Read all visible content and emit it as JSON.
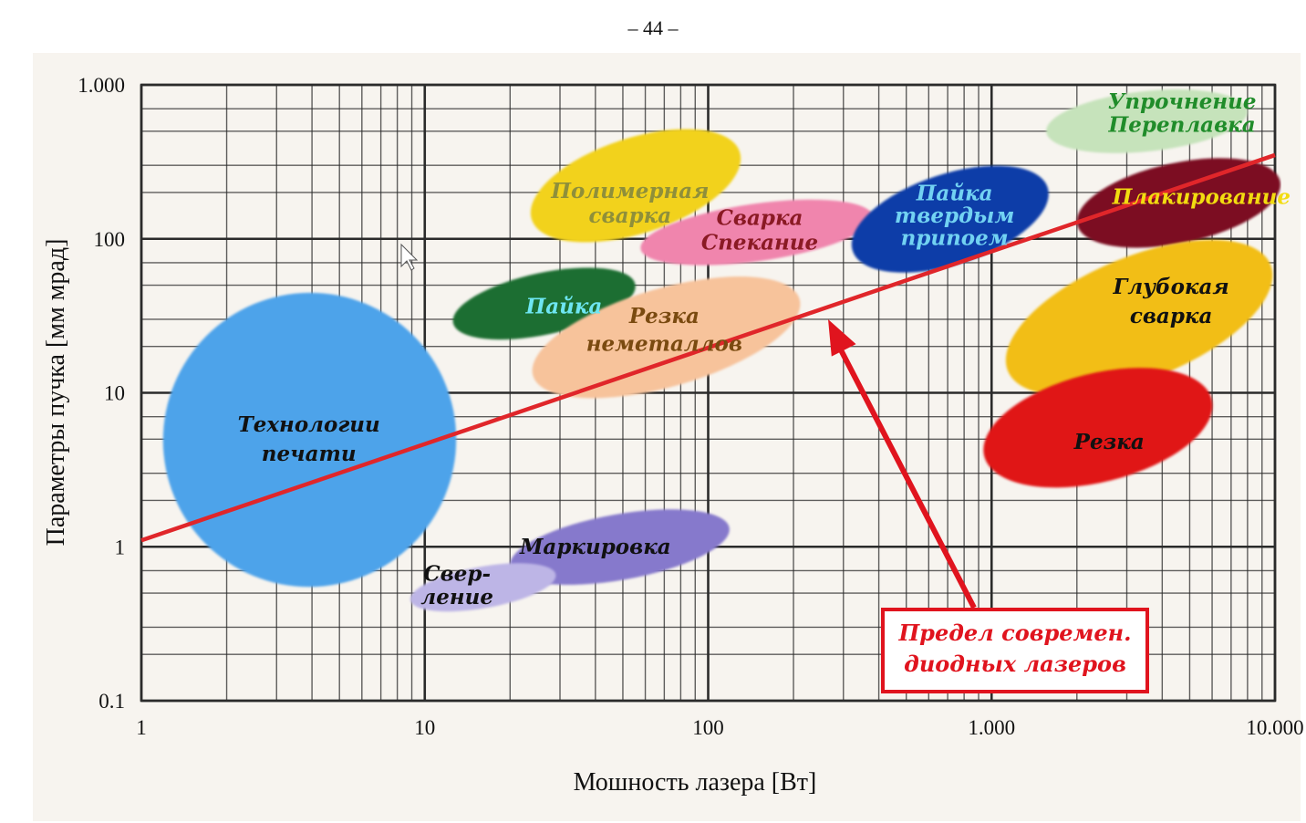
{
  "page_number": "– 44 –",
  "colors": {
    "limit_line": "#e0262a",
    "annotation": "#e0141e",
    "grid": "#2b2b2b",
    "background": "#f7f4ef"
  },
  "chart_data": {
    "type": "scatter",
    "title": "",
    "xlabel": "Мошность лазера [Вт]",
    "ylabel": "Параметры пучка [мм мрад]",
    "xscale": "log",
    "yscale": "log",
    "xlim": [
      1,
      10000
    ],
    "ylim": [
      0.1,
      1000
    ],
    "grid": true,
    "x_ticks": [
      {
        "value": 1,
        "label": "1"
      },
      {
        "value": 10,
        "label": "10"
      },
      {
        "value": 100,
        "label": "100"
      },
      {
        "value": 1000,
        "label": "1.000"
      },
      {
        "value": 10000,
        "label": "10.000"
      }
    ],
    "y_ticks": [
      {
        "value": 0.1,
        "label": "0.1"
      },
      {
        "value": 1,
        "label": "1"
      },
      {
        "value": 10,
        "label": "10"
      },
      {
        "value": 100,
        "label": "100"
      },
      {
        "value": 1000,
        "label": "1.000"
      }
    ],
    "regions": [
      {
        "name": "technologies-printing",
        "lines": [
          "Технологии",
          "печати"
        ],
        "x": 3.9,
        "y": 5.1,
        "x_range": [
          1.1,
          14
        ],
        "y_range": [
          0.7,
          35
        ],
        "color": "#4da3ea",
        "text_color": "#111111"
      },
      {
        "name": "polymer-welding",
        "lines": [
          "Полимерная",
          "сварка"
        ],
        "x": 53,
        "y": 170,
        "x_range": [
          22,
          140
        ],
        "y_range": [
          70,
          700
        ],
        "color": "#f2d21a",
        "text_color": "#8f8f3a"
      },
      {
        "name": "soldering",
        "lines": [
          "Пайка"
        ],
        "x": 31,
        "y": 37,
        "x_range": [
          12,
          58
        ],
        "y_range": [
          18,
          80
        ],
        "color": "#1c6e32",
        "text_color": "#6ee6f2"
      },
      {
        "name": "welding-sintering",
        "lines": [
          "Сварка",
          "Спекание"
        ],
        "x": 152,
        "y": 114,
        "x_range": [
          55,
          400
        ],
        "y_range": [
          55,
          220
        ],
        "color": "#f085ad",
        "text_color": "#8a1a24"
      },
      {
        "name": "cutting-nonmetals",
        "lines": [
          "Резка",
          "неметаллов"
        ],
        "x": 70,
        "y": 26,
        "x_range": [
          22,
          230
        ],
        "y_range": [
          7,
          75
        ],
        "color": "#f7c39b",
        "text_color": "#7a4a10"
      },
      {
        "name": "brazing",
        "lines": [
          "Пайка",
          "твердым",
          "припоем"
        ],
        "x": 740,
        "y": 140,
        "x_range": [
          300,
          1700
        ],
        "y_range": [
          45,
          400
        ],
        "color": "#0c3ca8",
        "text_color": "#72d2f2"
      },
      {
        "name": "hardening-remelting",
        "lines": [
          "Упрочнение",
          "Переплавка"
        ],
        "x": 4700,
        "y": 650,
        "x_range": [
          1500,
          8300
        ],
        "y_range": [
          280,
          1200
        ],
        "color": "#c6e3bb",
        "text_color": "#208c2a"
      },
      {
        "name": "cladding",
        "lines": [
          "Плакирование"
        ],
        "x": 5500,
        "y": 190,
        "x_range": [
          1900,
          11000
        ],
        "y_range": [
          65,
          450
        ],
        "color": "#7c0e24",
        "text_color": "#f2dc10"
      },
      {
        "name": "deep-welding",
        "lines": [
          "Глубокая",
          "сварка"
        ],
        "x": 4300,
        "y": 40,
        "x_range": [
          1000,
          11000
        ],
        "y_range": [
          7,
          135
        ],
        "color": "#f2be16",
        "text_color": "#111111"
      },
      {
        "name": "cutting",
        "lines": [
          "Резка"
        ],
        "x": 2600,
        "y": 4.9,
        "x_range": [
          880,
          6400
        ],
        "y_range": [
          1.6,
          22
        ],
        "color": "#e01414",
        "text_color": "#111111"
      },
      {
        "name": "marking",
        "lines": [
          "Маркировка"
        ],
        "x": 40,
        "y": 1.0,
        "x_range": [
          19,
          125
        ],
        "y_range": [
          0.45,
          2.2
        ],
        "color": "#8679cc",
        "text_color": "#111111"
      },
      {
        "name": "drilling",
        "lines": [
          "Свер-",
          "ление"
        ],
        "x": 13,
        "y": 0.56,
        "x_range": [
          8.6,
          30
        ],
        "y_range": [
          0.33,
          0.9
        ],
        "color": "#bdb5e6",
        "text_color": "#111111"
      }
    ],
    "series": [
      {
        "type": "line",
        "x": [
          1,
          10000
        ],
        "y": [
          1.1,
          350
        ]
      }
    ],
    "annotations": [
      {
        "text_lines": [
          "Предел современ.",
          "диодных лазеров"
        ],
        "arrow_x": 265,
        "arrow_y": 30,
        "placement": "bottom-right"
      }
    ]
  }
}
